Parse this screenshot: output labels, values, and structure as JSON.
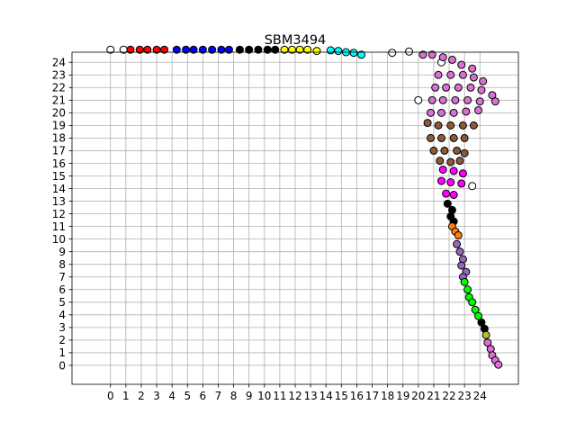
{
  "chart_data": {
    "type": "scatter",
    "title": "SBM3494",
    "xlabel": "",
    "ylabel": "",
    "xlim": [
      -2.5,
      26.5
    ],
    "ylim": [
      -1.5,
      24.8
    ],
    "x_ticks": [
      "0",
      "1",
      "2",
      "3",
      "4",
      "5",
      "6",
      "7",
      "8",
      "9",
      "10",
      "11",
      "12",
      "13",
      "14",
      "15",
      "16",
      "17",
      "18",
      "19",
      "20",
      "21",
      "22",
      "23",
      "24"
    ],
    "y_ticks": [
      "0",
      "1",
      "2",
      "3",
      "4",
      "5",
      "6",
      "7",
      "8",
      "9",
      "10",
      "11",
      "12",
      "13",
      "14",
      "15",
      "16",
      "17",
      "18",
      "19",
      "20",
      "21",
      "22",
      "23",
      "24"
    ],
    "grid": true,
    "legend": "none",
    "marker_edge_color": "#000000",
    "series": [
      {
        "color": "#ffffff",
        "points": [
          [
            0,
            25
          ],
          [
            0.85,
            25
          ],
          [
            18.3,
            24.75
          ],
          [
            19.4,
            24.85
          ],
          [
            20,
            21
          ],
          [
            21.5,
            24
          ],
          [
            23.5,
            14.2
          ]
        ]
      },
      {
        "color": "#ff0000",
        "points": [
          [
            1.3,
            25
          ],
          [
            1.9,
            25
          ],
          [
            2.4,
            25
          ],
          [
            3.0,
            25
          ],
          [
            3.5,
            25
          ]
        ]
      },
      {
        "color": "#0000ff",
        "points": [
          [
            4.3,
            25
          ],
          [
            4.9,
            25
          ],
          [
            5.4,
            25
          ],
          [
            6.0,
            25
          ],
          [
            6.6,
            25
          ],
          [
            7.2,
            25
          ],
          [
            7.7,
            25
          ]
        ]
      },
      {
        "color": "#000000",
        "points": [
          [
            8.4,
            25
          ],
          [
            9.0,
            25
          ],
          [
            9.6,
            25
          ],
          [
            10.2,
            25
          ],
          [
            10.7,
            25
          ]
        ]
      },
      {
        "color": "#ffff00",
        "points": [
          [
            11.3,
            25
          ],
          [
            11.8,
            25
          ],
          [
            12.3,
            25
          ],
          [
            12.8,
            25
          ],
          [
            13.4,
            24.9
          ]
        ]
      },
      {
        "color": "#00ffff",
        "points": [
          [
            14.3,
            24.95
          ],
          [
            14.8,
            24.9
          ],
          [
            15.3,
            24.8
          ],
          [
            15.8,
            24.75
          ],
          [
            16.3,
            24.6
          ]
        ]
      },
      {
        "color": "#da70d6",
        "points": [
          [
            20.3,
            24.6
          ],
          [
            20.9,
            24.6
          ],
          [
            21.6,
            24.4
          ],
          [
            22.2,
            24.2
          ],
          [
            22.8,
            23.8
          ],
          [
            23.5,
            23.5
          ],
          [
            21.3,
            23
          ],
          [
            22.1,
            23
          ],
          [
            22.9,
            23
          ],
          [
            23.6,
            22.8
          ],
          [
            24.2,
            22.5
          ],
          [
            21.1,
            22
          ],
          [
            21.8,
            22
          ],
          [
            22.6,
            22
          ],
          [
            23.4,
            22
          ],
          [
            24.1,
            21.8
          ],
          [
            24.8,
            21.4
          ],
          [
            20.9,
            21
          ],
          [
            21.6,
            21
          ],
          [
            22.4,
            21
          ],
          [
            23.2,
            21
          ],
          [
            24.0,
            20.9
          ],
          [
            25.0,
            20.9
          ],
          [
            20.8,
            20
          ],
          [
            21.5,
            20
          ],
          [
            22.3,
            20
          ],
          [
            23.1,
            20.1
          ],
          [
            23.9,
            20.2
          ]
        ]
      },
      {
        "color": "#8b5a3c",
        "points": [
          [
            20.6,
            19.2
          ],
          [
            21.3,
            19
          ],
          [
            22.1,
            19
          ],
          [
            22.9,
            19
          ],
          [
            23.6,
            19
          ],
          [
            20.8,
            18
          ],
          [
            21.5,
            18
          ],
          [
            22.3,
            18
          ],
          [
            23.0,
            18
          ],
          [
            21.0,
            17
          ],
          [
            21.7,
            17
          ],
          [
            22.5,
            17
          ],
          [
            23.0,
            16.8
          ],
          [
            21.4,
            16.2
          ],
          [
            22.1,
            16.1
          ],
          [
            22.7,
            16.2
          ]
        ]
      },
      {
        "color": "#ff00ff",
        "points": [
          [
            21.6,
            15.5
          ],
          [
            22.3,
            15.4
          ],
          [
            22.9,
            15.2
          ],
          [
            21.5,
            14.6
          ],
          [
            22.1,
            14.5
          ],
          [
            22.8,
            14.4
          ],
          [
            21.8,
            13.6
          ],
          [
            22.3,
            13.5
          ]
        ]
      },
      {
        "color": "#000000",
        "points": [
          [
            21.9,
            12.8
          ],
          [
            22.2,
            12.3
          ],
          [
            22.1,
            11.8
          ],
          [
            22.3,
            11.4
          ]
        ]
      },
      {
        "color": "#ff7f0e",
        "points": [
          [
            22.2,
            11.0
          ],
          [
            22.4,
            10.6
          ],
          [
            22.6,
            10.3
          ]
        ]
      },
      {
        "color": "#9467bd",
        "points": [
          [
            22.5,
            9.6
          ],
          [
            22.7,
            9.0
          ],
          [
            22.9,
            8.4
          ],
          [
            22.8,
            7.9
          ],
          [
            23.1,
            7.4
          ],
          [
            22.9,
            7.0
          ]
        ]
      },
      {
        "color": "#00ff00",
        "points": [
          [
            23.0,
            6.6
          ],
          [
            23.2,
            6.0
          ],
          [
            23.3,
            5.4
          ],
          [
            23.5,
            5.0
          ],
          [
            23.7,
            4.4
          ],
          [
            23.9,
            3.9
          ]
        ]
      },
      {
        "color": "#000000",
        "points": [
          [
            24.1,
            3.4
          ],
          [
            24.3,
            2.9
          ]
        ]
      },
      {
        "color": "#bcbd22",
        "points": [
          [
            24.4,
            2.4
          ]
        ]
      },
      {
        "color": "#da70d6",
        "points": [
          [
            24.5,
            1.8
          ],
          [
            24.7,
            1.3
          ],
          [
            24.8,
            0.8
          ],
          [
            25.0,
            0.4
          ],
          [
            25.2,
            0.05
          ]
        ]
      }
    ]
  }
}
